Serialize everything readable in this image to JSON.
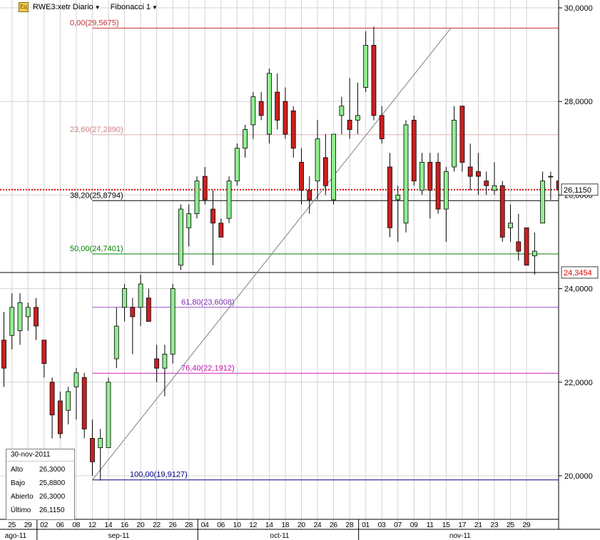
{
  "toolbar": {
    "icon_text": "Eq",
    "symbol_label": "RWE3:xetr Diario",
    "study_label": "Fibonacci 1"
  },
  "y_axis": {
    "ticks": [
      {
        "value": 20,
        "label": "20,0000"
      },
      {
        "value": 22,
        "label": "22,0000"
      },
      {
        "value": 24,
        "label": "24,0000"
      },
      {
        "value": 26,
        "label": "26,0000"
      },
      {
        "value": 28,
        "label": "28,0000"
      },
      {
        "value": 30,
        "label": "30,0000"
      }
    ],
    "range": [
      19.0,
      30.1
    ]
  },
  "x_axis": {
    "day_labels": [
      "25",
      "29",
      "02",
      "06",
      "08",
      "12",
      "14",
      "16",
      "20",
      "22",
      "26",
      "28",
      "04",
      "06",
      "10",
      "12",
      "14",
      "18",
      "20",
      "24",
      "26",
      "28",
      "01",
      "03",
      "07",
      "09",
      "11",
      "15",
      "17",
      "21",
      "23",
      "25",
      "29"
    ],
    "month_labels": [
      {
        "label": "ago-11",
        "start_day_index": 0
      },
      {
        "label": "sep-11",
        "start_day_index": 2
      },
      {
        "label": "oct-11",
        "start_day_index": 12
      },
      {
        "label": "nov-11",
        "start_day_index": 22
      }
    ]
  },
  "price_markers": {
    "last": {
      "value": 26.115,
      "label": "26,1150",
      "color": "#000000",
      "line_color": "#e00000"
    },
    "level": {
      "value": 24.3454,
      "label": "24,3454",
      "color": "#e00000",
      "line_color": "#000000"
    }
  },
  "fibonacci": {
    "trend_start": {
      "day_index": 5,
      "value": 19.9127
    },
    "trend_end": {
      "day_index": 27.3,
      "value": 29.5675
    },
    "levels": [
      {
        "label": "0,00(29,5675)",
        "value": 29.5675,
        "color": "#c83232",
        "label_color": "#c83232"
      },
      {
        "label": "23,60(27,2890)",
        "value": 27.289,
        "color": "#e0b0b0",
        "label_color": "#d08080"
      },
      {
        "label": "38,20(25,8794)",
        "value": 25.8794,
        "color": "#000000",
        "label_color": "#000000"
      },
      {
        "label": "50,00(24,7401)",
        "value": 24.7401,
        "color": "#008000",
        "label_color": "#008000"
      },
      {
        "label": "61,80(23,6008)",
        "value": 23.6008,
        "color": "#a050c8",
        "label_color": "#8030b0"
      },
      {
        "label": "76,40(22,1912)",
        "value": 22.1912,
        "color": "#d020c0",
        "label_color": "#c010b0"
      },
      {
        "label": "100,00(19,9127)",
        "value": 19.9127,
        "color": "#000080",
        "label_color": "#000080"
      }
    ]
  },
  "info_box": {
    "date": "30-nov-2011",
    "rows": [
      {
        "key": "Alto",
        "value": "26,3000"
      },
      {
        "key": "Bajo",
        "value": "25,8800"
      },
      {
        "key": "Abierto",
        "value": "26,3000"
      },
      {
        "key": "Último",
        "value": "26,1150"
      }
    ]
  },
  "chart_data": {
    "type": "candlestick",
    "title": "RWE3:xetr Diario",
    "ylim": [
      19.0,
      30.1
    ],
    "grid": true,
    "up_color": "#90ee90",
    "down_color": "#cc1f1f",
    "candles": [
      {
        "date": "2011-08-25",
        "open": 22.9,
        "high": 23.5,
        "low": 21.9,
        "close": 22.3
      },
      {
        "date": "2011-08-26",
        "open": 23.0,
        "high": 23.9,
        "low": 22.7,
        "close": 23.6
      },
      {
        "date": "2011-08-29",
        "open": 23.1,
        "high": 23.9,
        "low": 22.8,
        "close": 23.7
      },
      {
        "date": "2011-08-30",
        "open": 23.4,
        "high": 23.7,
        "low": 23.1,
        "close": 23.6
      },
      {
        "date": "2011-08-31",
        "open": 23.6,
        "high": 23.8,
        "low": 22.9,
        "close": 23.2
      },
      {
        "date": "2011-09-01",
        "open": 22.9,
        "high": 22.9,
        "low": 22.1,
        "close": 22.4
      },
      {
        "date": "2011-09-02",
        "open": 22.0,
        "high": 22.1,
        "low": 20.8,
        "close": 21.3
      },
      {
        "date": "2011-09-05",
        "open": 21.6,
        "high": 21.8,
        "low": 20.8,
        "close": 20.9
      },
      {
        "date": "2011-09-06",
        "open": 21.4,
        "high": 21.9,
        "low": 21.1,
        "close": 21.8
      },
      {
        "date": "2011-09-07",
        "open": 21.9,
        "high": 22.3,
        "low": 21.2,
        "close": 22.2
      },
      {
        "date": "2011-09-08",
        "open": 22.1,
        "high": 22.2,
        "low": 20.8,
        "close": 21.0
      },
      {
        "date": "2011-09-09",
        "open": 20.8,
        "high": 21.2,
        "low": 20.0,
        "close": 20.3
      },
      {
        "date": "2011-09-12",
        "open": 20.6,
        "high": 21.0,
        "low": 19.9,
        "close": 20.8
      },
      {
        "date": "2011-09-13",
        "open": 20.6,
        "high": 22.1,
        "low": 20.6,
        "close": 22.0
      },
      {
        "date": "2011-09-14",
        "open": 22.5,
        "high": 23.6,
        "low": 22.3,
        "close": 23.2
      },
      {
        "date": "2011-09-15",
        "open": 23.6,
        "high": 24.1,
        "low": 23.3,
        "close": 24.0
      },
      {
        "date": "2011-09-16",
        "open": 23.6,
        "high": 23.8,
        "low": 22.6,
        "close": 23.4
      },
      {
        "date": "2011-09-19",
        "open": 23.6,
        "high": 24.3,
        "low": 23.2,
        "close": 24.1
      },
      {
        "date": "2011-09-20",
        "open": 23.8,
        "high": 24.0,
        "low": 23.3,
        "close": 23.3
      },
      {
        "date": "2011-09-21",
        "open": 22.5,
        "high": 22.8,
        "low": 22.0,
        "close": 22.3
      },
      {
        "date": "2011-09-22",
        "open": 22.3,
        "high": 22.8,
        "low": 21.7,
        "close": 22.6
      },
      {
        "date": "2011-09-23",
        "open": 22.6,
        "high": 24.1,
        "low": 22.4,
        "close": 24.0
      },
      {
        "date": "2011-09-26",
        "open": 24.5,
        "high": 25.8,
        "low": 24.4,
        "close": 25.7
      },
      {
        "date": "2011-09-27",
        "open": 25.3,
        "high": 25.8,
        "low": 24.9,
        "close": 25.6
      },
      {
        "date": "2011-09-28",
        "open": 25.6,
        "high": 26.4,
        "low": 25.5,
        "close": 26.3
      },
      {
        "date": "2011-09-29",
        "open": 26.4,
        "high": 26.6,
        "low": 25.8,
        "close": 25.9
      },
      {
        "date": "2011-09-30",
        "open": 25.7,
        "high": 26.1,
        "low": 24.5,
        "close": 25.4
      },
      {
        "date": "2011-10-03",
        "open": 25.4,
        "high": 25.5,
        "low": 25.1,
        "close": 25.1
      },
      {
        "date": "2011-10-04",
        "open": 25.5,
        "high": 26.4,
        "low": 25.4,
        "close": 26.3
      },
      {
        "date": "2011-10-05",
        "open": 26.3,
        "high": 27.1,
        "low": 26.2,
        "close": 27.0
      },
      {
        "date": "2011-10-06",
        "open": 27.0,
        "high": 27.5,
        "low": 26.8,
        "close": 27.4
      },
      {
        "date": "2011-10-07",
        "open": 27.5,
        "high": 28.2,
        "low": 27.2,
        "close": 28.1
      },
      {
        "date": "2011-10-10",
        "open": 28.0,
        "high": 28.2,
        "low": 27.6,
        "close": 27.7
      },
      {
        "date": "2011-10-11",
        "open": 27.3,
        "high": 28.7,
        "low": 27.1,
        "close": 28.6
      },
      {
        "date": "2011-10-12",
        "open": 28.2,
        "high": 28.6,
        "low": 27.4,
        "close": 27.6
      },
      {
        "date": "2011-10-13",
        "open": 28.0,
        "high": 28.3,
        "low": 27.2,
        "close": 27.3
      },
      {
        "date": "2011-10-14",
        "open": 27.8,
        "high": 27.9,
        "low": 26.8,
        "close": 27.0
      },
      {
        "date": "2011-10-17",
        "open": 26.7,
        "high": 27.0,
        "low": 25.8,
        "close": 26.1
      },
      {
        "date": "2011-10-18",
        "open": 26.1,
        "high": 26.4,
        "low": 25.6,
        "close": 25.9
      },
      {
        "date": "2011-10-19",
        "open": 26.3,
        "high": 27.6,
        "low": 25.9,
        "close": 27.2
      },
      {
        "date": "2011-10-20",
        "open": 26.8,
        "high": 27.3,
        "low": 26.0,
        "close": 26.2
      },
      {
        "date": "2011-10-21",
        "open": 25.9,
        "high": 27.3,
        "low": 25.8,
        "close": 27.3
      },
      {
        "date": "2011-10-24",
        "open": 27.7,
        "high": 28.1,
        "low": 27.3,
        "close": 27.9
      },
      {
        "date": "2011-10-25",
        "open": 27.6,
        "high": 28.5,
        "low": 27.2,
        "close": 27.4
      },
      {
        "date": "2011-10-26",
        "open": 27.6,
        "high": 28.4,
        "low": 27.3,
        "close": 27.7
      },
      {
        "date": "2011-10-27",
        "open": 28.3,
        "high": 29.5,
        "low": 28.2,
        "close": 29.2
      },
      {
        "date": "2011-10-28",
        "open": 29.2,
        "high": 29.6,
        "low": 27.6,
        "close": 27.7
      },
      {
        "date": "2011-10-31",
        "open": 27.7,
        "high": 27.9,
        "low": 27.1,
        "close": 27.2
      },
      {
        "date": "2011-11-01",
        "open": 26.6,
        "high": 26.9,
        "low": 25.1,
        "close": 25.3
      },
      {
        "date": "2011-11-02",
        "open": 25.9,
        "high": 26.2,
        "low": 25.0,
        "close": 26.0
      },
      {
        "date": "2011-11-03",
        "open": 25.4,
        "high": 27.6,
        "low": 25.2,
        "close": 27.5
      },
      {
        "date": "2011-11-04",
        "open": 27.6,
        "high": 27.7,
        "low": 26.2,
        "close": 26.3
      },
      {
        "date": "2011-11-07",
        "open": 26.1,
        "high": 26.9,
        "low": 26.0,
        "close": 26.7
      },
      {
        "date": "2011-11-08",
        "open": 26.7,
        "high": 26.9,
        "low": 25.5,
        "close": 26.1
      },
      {
        "date": "2011-11-09",
        "open": 26.7,
        "high": 26.9,
        "low": 25.6,
        "close": 25.7
      },
      {
        "date": "2011-11-10",
        "open": 25.7,
        "high": 26.6,
        "low": 25.0,
        "close": 26.5
      },
      {
        "date": "2011-11-11",
        "open": 26.6,
        "high": 27.9,
        "low": 26.5,
        "close": 27.6
      },
      {
        "date": "2011-11-14",
        "open": 27.9,
        "high": 27.9,
        "low": 26.5,
        "close": 26.7
      },
      {
        "date": "2011-11-15",
        "open": 26.6,
        "high": 27.1,
        "low": 26.1,
        "close": 26.4
      },
      {
        "date": "2011-11-16",
        "open": 26.5,
        "high": 26.9,
        "low": 26.0,
        "close": 26.4
      },
      {
        "date": "2011-11-17",
        "open": 26.3,
        "high": 26.5,
        "low": 26.0,
        "close": 26.2
      },
      {
        "date": "2011-11-18",
        "open": 26.1,
        "high": 26.7,
        "low": 26.0,
        "close": 26.2
      },
      {
        "date": "2011-11-21",
        "open": 26.2,
        "high": 26.3,
        "low": 25.0,
        "close": 25.1
      },
      {
        "date": "2011-11-22",
        "open": 25.3,
        "high": 25.8,
        "low": 25.0,
        "close": 25.4
      },
      {
        "date": "2011-11-23",
        "open": 25.0,
        "high": 25.6,
        "low": 24.6,
        "close": 24.8
      },
      {
        "date": "2011-11-24",
        "open": 25.3,
        "high": 25.3,
        "low": 24.5,
        "close": 24.5
      },
      {
        "date": "2011-11-25",
        "open": 24.7,
        "high": 25.2,
        "low": 24.3,
        "close": 24.8
      },
      {
        "date": "2011-11-28",
        "open": 25.4,
        "high": 26.5,
        "low": 25.4,
        "close": 26.3
      },
      {
        "date": "2011-11-29",
        "open": 26.4,
        "high": 26.5,
        "low": 25.9,
        "close": 26.4
      },
      {
        "date": "2011-11-30",
        "open": 26.3,
        "high": 26.3,
        "low": 25.88,
        "close": 26.115
      }
    ]
  }
}
